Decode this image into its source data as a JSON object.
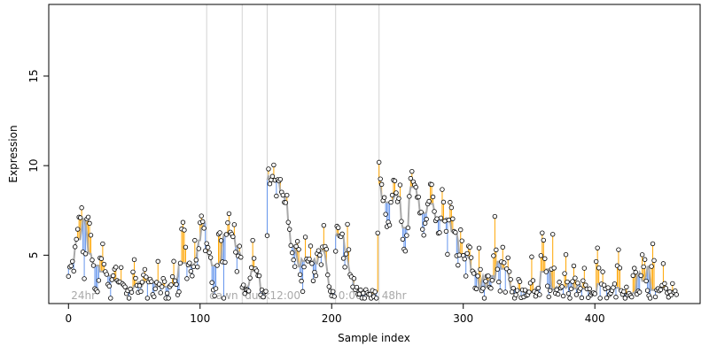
{
  "chart_data": {
    "type": "scatter",
    "xlabel": "Sample index",
    "ylabel": "Expression",
    "xlim": [
      -15,
      480
    ],
    "ylim": [
      2.3,
      19
    ],
    "x_ticks": [
      0,
      100,
      200,
      300,
      400
    ],
    "y_ticks": [
      5,
      10,
      15
    ],
    "grid": false,
    "legend": "none",
    "colors": {
      "above_fit_segment": "#FFA500",
      "below_fit_segment": "#6495ED",
      "fit_line": "#A9A9A9",
      "point_edge": "#000000",
      "section_line": "#D3D3D3",
      "section_label": "#A9A9A9"
    },
    "sections": [
      {
        "x": 0,
        "label": "24hr"
      },
      {
        "x": 105,
        "label": "dawn"
      },
      {
        "x": 132,
        "label": "dusk"
      },
      {
        "x": 151,
        "label": "12:00"
      },
      {
        "x": 203,
        "label": "0:00"
      },
      {
        "x": 236,
        "label": "48hr"
      }
    ],
    "anchors": [
      [
        0,
        3.7
      ],
      [
        2,
        4.7
      ],
      [
        4,
        4.3
      ],
      [
        6,
        6.0
      ],
      [
        8,
        7.1
      ],
      [
        10,
        7.3
      ],
      [
        12,
        3.6
      ],
      [
        14,
        6.9
      ],
      [
        16,
        7.0
      ],
      [
        18,
        5.0
      ],
      [
        20,
        3.2
      ],
      [
        22,
        3.0
      ],
      [
        24,
        4.5
      ],
      [
        26,
        5.5
      ],
      [
        28,
        4.0
      ],
      [
        30,
        3.5
      ],
      [
        32,
        2.8
      ],
      [
        34,
        3.9
      ],
      [
        36,
        4.4
      ],
      [
        38,
        3.2
      ],
      [
        40,
        4.1
      ],
      [
        42,
        3.3
      ],
      [
        44,
        2.9
      ],
      [
        46,
        2.8
      ],
      [
        48,
        3.0
      ],
      [
        50,
        4.8
      ],
      [
        52,
        3.1
      ],
      [
        54,
        3.0
      ],
      [
        56,
        3.5
      ],
      [
        58,
        4.2
      ],
      [
        60,
        2.9
      ],
      [
        62,
        3.8
      ],
      [
        64,
        2.8
      ],
      [
        66,
        3.0
      ],
      [
        68,
        4.3
      ],
      [
        70,
        2.9
      ],
      [
        72,
        3.7
      ],
      [
        74,
        2.8
      ],
      [
        76,
        2.7
      ],
      [
        78,
        3.3
      ],
      [
        80,
        4.6
      ],
      [
        82,
        3.0
      ],
      [
        84,
        2.9
      ],
      [
        86,
        6.5
      ],
      [
        88,
        6.6
      ],
      [
        90,
        4.0
      ],
      [
        92,
        4.5
      ],
      [
        94,
        3.8
      ],
      [
        96,
        5.5
      ],
      [
        98,
        4.2
      ],
      [
        100,
        6.9
      ],
      [
        102,
        7.0
      ],
      [
        104,
        5.6
      ],
      [
        106,
        5.4
      ],
      [
        108,
        4.8
      ],
      [
        110,
        2.8
      ],
      [
        112,
        2.9
      ],
      [
        114,
        6.3
      ],
      [
        116,
        5.9
      ],
      [
        118,
        2.8
      ],
      [
        120,
        6.2
      ],
      [
        122,
        7.2
      ],
      [
        124,
        6.0
      ],
      [
        126,
        6.4
      ],
      [
        128,
        4.2
      ],
      [
        130,
        5.6
      ],
      [
        132,
        3.5
      ],
      [
        134,
        3.0
      ],
      [
        136,
        2.9
      ],
      [
        138,
        3.6
      ],
      [
        140,
        5.5
      ],
      [
        142,
        4.3
      ],
      [
        144,
        4.0
      ],
      [
        146,
        3.0
      ],
      [
        148,
        2.9
      ],
      [
        150,
        2.8
      ],
      [
        152,
        9.7
      ],
      [
        154,
        8.9
      ],
      [
        156,
        10.0
      ],
      [
        158,
        8.5
      ],
      [
        160,
        9.3
      ],
      [
        162,
        8.8
      ],
      [
        164,
        7.8
      ],
      [
        166,
        8.2
      ],
      [
        168,
        6.2
      ],
      [
        170,
        5.0
      ],
      [
        172,
        4.6
      ],
      [
        174,
        5.9
      ],
      [
        176,
        4.2
      ],
      [
        178,
        2.9
      ],
      [
        180,
        5.8
      ],
      [
        182,
        4.5
      ],
      [
        184,
        5.3
      ],
      [
        186,
        3.8
      ],
      [
        188,
        4.0
      ],
      [
        190,
        5.5
      ],
      [
        192,
        4.5
      ],
      [
        194,
        6.4
      ],
      [
        196,
        5.2
      ],
      [
        198,
        3.0
      ],
      [
        200,
        2.9
      ],
      [
        202,
        2.9
      ],
      [
        204,
        6.8
      ],
      [
        206,
        6.2
      ],
      [
        208,
        5.9
      ],
      [
        210,
        4.2
      ],
      [
        212,
        6.5
      ],
      [
        214,
        4.0
      ],
      [
        216,
        3.5
      ],
      [
        218,
        3.2
      ],
      [
        220,
        3.0
      ],
      [
        222,
        2.8
      ],
      [
        224,
        2.7
      ],
      [
        226,
        2.9
      ],
      [
        228,
        2.8
      ],
      [
        230,
        2.7
      ],
      [
        232,
        2.8
      ],
      [
        234,
        2.7
      ],
      [
        236,
        10.0
      ],
      [
        238,
        8.7
      ],
      [
        240,
        8.1
      ],
      [
        242,
        6.5
      ],
      [
        244,
        7.0
      ],
      [
        246,
        8.5
      ],
      [
        248,
        9.3
      ],
      [
        250,
        7.9
      ],
      [
        252,
        8.6
      ],
      [
        254,
        5.8
      ],
      [
        256,
        5.1
      ],
      [
        258,
        6.8
      ],
      [
        260,
        9.5
      ],
      [
        262,
        9.2
      ],
      [
        264,
        8.8
      ],
      [
        266,
        7.9
      ],
      [
        268,
        7.3
      ],
      [
        270,
        6.0
      ],
      [
        272,
        7.2
      ],
      [
        274,
        8.3
      ],
      [
        276,
        9.0
      ],
      [
        278,
        7.5
      ],
      [
        280,
        6.7
      ],
      [
        282,
        6.1
      ],
      [
        284,
        8.6
      ],
      [
        286,
        7.0
      ],
      [
        288,
        5.4
      ],
      [
        290,
        8.0
      ],
      [
        292,
        7.1
      ],
      [
        294,
        6.0
      ],
      [
        296,
        4.2
      ],
      [
        298,
        6.4
      ],
      [
        300,
        5.0
      ],
      [
        302,
        4.2
      ],
      [
        304,
        5.6
      ],
      [
        306,
        4.9
      ],
      [
        308,
        3.8
      ],
      [
        310,
        2.8
      ],
      [
        312,
        5.4
      ],
      [
        314,
        3.0
      ],
      [
        316,
        2.8
      ],
      [
        318,
        4.0
      ],
      [
        320,
        3.2
      ],
      [
        322,
        3.5
      ],
      [
        324,
        6.8
      ],
      [
        326,
        4.2
      ],
      [
        328,
        3.0
      ],
      [
        330,
        5.7
      ],
      [
        332,
        3.2
      ],
      [
        334,
        4.8
      ],
      [
        336,
        3.6
      ],
      [
        338,
        2.8
      ],
      [
        340,
        2.7
      ],
      [
        342,
        3.7
      ],
      [
        344,
        2.8
      ],
      [
        346,
        3.0
      ],
      [
        348,
        2.7
      ],
      [
        350,
        2.9
      ],
      [
        352,
        4.6
      ],
      [
        354,
        2.8
      ],
      [
        356,
        3.0
      ],
      [
        358,
        2.9
      ],
      [
        360,
        6.6
      ],
      [
        362,
        4.8
      ],
      [
        364,
        3.2
      ],
      [
        366,
        2.8
      ],
      [
        368,
        5.9
      ],
      [
        370,
        3.0
      ],
      [
        372,
        2.9
      ],
      [
        374,
        3.5
      ],
      [
        376,
        2.8
      ],
      [
        378,
        4.9
      ],
      [
        380,
        2.7
      ],
      [
        382,
        2.8
      ],
      [
        384,
        4.5
      ],
      [
        386,
        2.9
      ],
      [
        388,
        3.3
      ],
      [
        390,
        2.8
      ],
      [
        392,
        4.1
      ],
      [
        394,
        3.0
      ],
      [
        396,
        2.8
      ],
      [
        398,
        2.9
      ],
      [
        400,
        3.0
      ],
      [
        402,
        5.6
      ],
      [
        404,
        2.7
      ],
      [
        406,
        3.9
      ],
      [
        408,
        3.0
      ],
      [
        410,
        2.9
      ],
      [
        412,
        2.8
      ],
      [
        414,
        3.4
      ],
      [
        416,
        2.8
      ],
      [
        418,
        5.6
      ],
      [
        420,
        2.9
      ],
      [
        422,
        2.8
      ],
      [
        424,
        3.0
      ],
      [
        426,
        2.7
      ],
      [
        428,
        2.9
      ],
      [
        430,
        4.4
      ],
      [
        432,
        3.1
      ],
      [
        434,
        2.9
      ],
      [
        436,
        4.8
      ],
      [
        438,
        4.6
      ],
      [
        440,
        2.8
      ],
      [
        442,
        2.7
      ],
      [
        444,
        5.8
      ],
      [
        446,
        2.9
      ],
      [
        448,
        3.2
      ],
      [
        450,
        2.8
      ],
      [
        452,
        4.4
      ],
      [
        454,
        2.9
      ],
      [
        456,
        2.8
      ],
      [
        458,
        3.0
      ],
      [
        460,
        3.1
      ],
      [
        462,
        2.8
      ]
    ]
  }
}
